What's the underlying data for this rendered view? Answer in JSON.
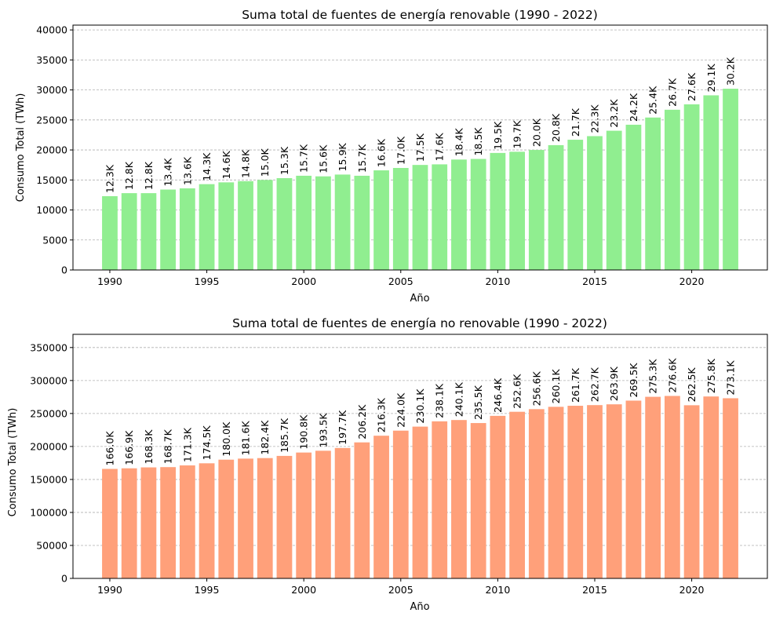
{
  "chart_data": [
    {
      "type": "bar",
      "title": "Suma total de fuentes de energía renovable (1990 - 2022)",
      "xlabel": "Año",
      "ylabel": "Consumo Total (TWh)",
      "color": "#90ee90",
      "x": [
        1990,
        1991,
        1992,
        1993,
        1994,
        1995,
        1996,
        1997,
        1998,
        1999,
        2000,
        2001,
        2002,
        2003,
        2004,
        2005,
        2006,
        2007,
        2008,
        2009,
        2010,
        2011,
        2012,
        2013,
        2014,
        2015,
        2016,
        2017,
        2018,
        2019,
        2020,
        2021,
        2022
      ],
      "values": [
        12300,
        12800,
        12800,
        13400,
        13600,
        14300,
        14600,
        14800,
        15000,
        15300,
        15700,
        15600,
        15900,
        15700,
        16600,
        17000,
        17500,
        17600,
        18400,
        18500,
        19500,
        19700,
        20000,
        20800,
        21700,
        22300,
        23200,
        24200,
        25400,
        26700,
        27600,
        29100,
        30200
      ],
      "value_labels": [
        "12.3K",
        "12.8K",
        "12.8K",
        "13.4K",
        "13.6K",
        "14.3K",
        "14.6K",
        "14.8K",
        "15.0K",
        "15.3K",
        "15.7K",
        "15.6K",
        "15.9K",
        "15.7K",
        "16.6K",
        "17.0K",
        "17.5K",
        "17.6K",
        "18.4K",
        "18.5K",
        "19.5K",
        "19.7K",
        "20.0K",
        "20.8K",
        "21.7K",
        "22.3K",
        "23.2K",
        "24.2K",
        "25.4K",
        "26.7K",
        "27.6K",
        "29.1K",
        "30.2K"
      ],
      "ylim": [
        0,
        40800
      ],
      "yticks": [
        0,
        5000,
        10000,
        15000,
        20000,
        25000,
        30000,
        35000,
        40000
      ],
      "xticks": [
        1990,
        1995,
        2000,
        2005,
        2010,
        2015,
        2020
      ],
      "grid": "y-dashed"
    },
    {
      "type": "bar",
      "title": "Suma total de fuentes de energía no renovable (1990 - 2022)",
      "xlabel": "Año",
      "ylabel": "Consumo Total (TWh)",
      "color": "#ffa07a",
      "x": [
        1990,
        1991,
        1992,
        1993,
        1994,
        1995,
        1996,
        1997,
        1998,
        1999,
        2000,
        2001,
        2002,
        2003,
        2004,
        2005,
        2006,
        2007,
        2008,
        2009,
        2010,
        2011,
        2012,
        2013,
        2014,
        2015,
        2016,
        2017,
        2018,
        2019,
        2020,
        2021,
        2022
      ],
      "values": [
        166000,
        166900,
        168300,
        168700,
        171300,
        174500,
        180000,
        181600,
        182400,
        185700,
        190800,
        193500,
        197700,
        206200,
        216300,
        224000,
        230100,
        238100,
        240100,
        235500,
        246400,
        252600,
        256600,
        260100,
        261700,
        262700,
        263900,
        269500,
        275300,
        276600,
        262500,
        275800,
        273100
      ],
      "value_labels": [
        "166.0K",
        "166.9K",
        "168.3K",
        "168.7K",
        "171.3K",
        "174.5K",
        "180.0K",
        "181.6K",
        "182.4K",
        "185.7K",
        "190.8K",
        "193.5K",
        "197.7K",
        "206.2K",
        "216.3K",
        "224.0K",
        "230.1K",
        "238.1K",
        "240.1K",
        "235.5K",
        "246.4K",
        "252.6K",
        "256.6K",
        "260.1K",
        "261.7K",
        "262.7K",
        "263.9K",
        "269.5K",
        "275.3K",
        "276.6K",
        "262.5K",
        "275.8K",
        "273.1K"
      ],
      "ylim": [
        0,
        370000
      ],
      "yticks": [
        0,
        50000,
        100000,
        150000,
        200000,
        250000,
        300000,
        350000
      ],
      "xticks": [
        1990,
        1995,
        2000,
        2005,
        2010,
        2015,
        2020
      ],
      "grid": "y-dashed"
    }
  ]
}
